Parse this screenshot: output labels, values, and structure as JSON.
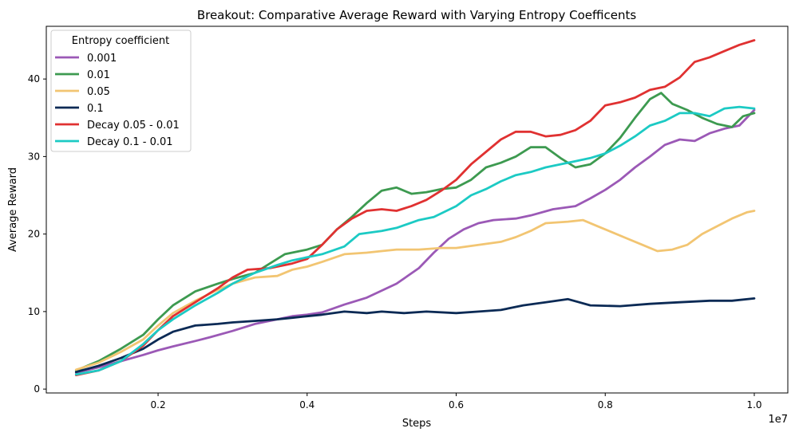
{
  "chart_data": {
    "type": "line",
    "title": "Breakout: Comparative Average Reward with Varying Entropy Coefficents",
    "xlabel": "Steps",
    "ylabel": "Average Reward",
    "x_scale_label": "1e7",
    "xlim": [
      0.05,
      1.045
    ],
    "ylim": [
      -0.5,
      46.8
    ],
    "xticks": [
      0.2,
      0.4,
      0.6,
      0.8,
      1.0
    ],
    "xtick_labels": [
      "0.2",
      "0.4",
      "0.6",
      "0.8",
      "1.0"
    ],
    "yticks": [
      0,
      10,
      20,
      30,
      40
    ],
    "ytick_labels": [
      "0",
      "10",
      "20",
      "30",
      "40"
    ],
    "grid": false,
    "legend_title": "Entropy coefficient",
    "legend_position": "top-left",
    "series": [
      {
        "name": "0.001",
        "color": "#9b59b6",
        "points": [
          [
            0.09,
            2.1
          ],
          [
            0.12,
            2.8
          ],
          [
            0.15,
            3.6
          ],
          [
            0.18,
            4.4
          ],
          [
            0.2,
            5.0
          ],
          [
            0.22,
            5.5
          ],
          [
            0.25,
            6.2
          ],
          [
            0.27,
            6.7
          ],
          [
            0.3,
            7.5
          ],
          [
            0.33,
            8.4
          ],
          [
            0.36,
            9.0
          ],
          [
            0.38,
            9.4
          ],
          [
            0.4,
            9.6
          ],
          [
            0.42,
            9.9
          ],
          [
            0.45,
            10.9
          ],
          [
            0.48,
            11.8
          ],
          [
            0.5,
            12.7
          ],
          [
            0.52,
            13.6
          ],
          [
            0.55,
            15.6
          ],
          [
            0.57,
            17.6
          ],
          [
            0.59,
            19.4
          ],
          [
            0.61,
            20.6
          ],
          [
            0.63,
            21.4
          ],
          [
            0.65,
            21.8
          ],
          [
            0.68,
            22.0
          ],
          [
            0.7,
            22.4
          ],
          [
            0.73,
            23.2
          ],
          [
            0.76,
            23.6
          ],
          [
            0.78,
            24.6
          ],
          [
            0.8,
            25.7
          ],
          [
            0.82,
            27.0
          ],
          [
            0.84,
            28.6
          ],
          [
            0.86,
            30.0
          ],
          [
            0.88,
            31.5
          ],
          [
            0.9,
            32.2
          ],
          [
            0.92,
            32.0
          ],
          [
            0.94,
            33.0
          ],
          [
            0.96,
            33.6
          ],
          [
            0.98,
            34.0
          ],
          [
            1.0,
            36.0
          ]
        ]
      },
      {
        "name": "0.01",
        "color": "#3d9a50",
        "points": [
          [
            0.09,
            2.4
          ],
          [
            0.12,
            3.6
          ],
          [
            0.15,
            5.2
          ],
          [
            0.18,
            7.0
          ],
          [
            0.2,
            9.0
          ],
          [
            0.22,
            10.8
          ],
          [
            0.25,
            12.6
          ],
          [
            0.28,
            13.6
          ],
          [
            0.3,
            14.2
          ],
          [
            0.33,
            15.0
          ],
          [
            0.35,
            16.2
          ],
          [
            0.37,
            17.4
          ],
          [
            0.4,
            18.0
          ],
          [
            0.42,
            18.6
          ],
          [
            0.44,
            20.6
          ],
          [
            0.46,
            22.2
          ],
          [
            0.48,
            24.0
          ],
          [
            0.5,
            25.6
          ],
          [
            0.52,
            26.0
          ],
          [
            0.54,
            25.2
          ],
          [
            0.56,
            25.4
          ],
          [
            0.58,
            25.8
          ],
          [
            0.6,
            26.0
          ],
          [
            0.62,
            27.0
          ],
          [
            0.64,
            28.6
          ],
          [
            0.66,
            29.2
          ],
          [
            0.68,
            30.0
          ],
          [
            0.7,
            31.2
          ],
          [
            0.72,
            31.2
          ],
          [
            0.74,
            29.8
          ],
          [
            0.76,
            28.6
          ],
          [
            0.78,
            29.0
          ],
          [
            0.8,
            30.4
          ],
          [
            0.82,
            32.4
          ],
          [
            0.84,
            35.0
          ],
          [
            0.86,
            37.4
          ],
          [
            0.875,
            38.2
          ],
          [
            0.89,
            36.8
          ],
          [
            0.91,
            36.0
          ],
          [
            0.93,
            35.0
          ],
          [
            0.95,
            34.2
          ],
          [
            0.97,
            33.8
          ],
          [
            0.985,
            35.2
          ],
          [
            1.0,
            35.6
          ]
        ]
      },
      {
        "name": "0.05",
        "color": "#f2c572",
        "points": [
          [
            0.09,
            2.5
          ],
          [
            0.12,
            3.4
          ],
          [
            0.15,
            4.8
          ],
          [
            0.18,
            6.4
          ],
          [
            0.2,
            8.2
          ],
          [
            0.22,
            9.8
          ],
          [
            0.25,
            11.4
          ],
          [
            0.28,
            12.8
          ],
          [
            0.3,
            13.6
          ],
          [
            0.33,
            14.4
          ],
          [
            0.36,
            14.6
          ],
          [
            0.38,
            15.4
          ],
          [
            0.4,
            15.8
          ],
          [
            0.42,
            16.4
          ],
          [
            0.45,
            17.4
          ],
          [
            0.48,
            17.6
          ],
          [
            0.5,
            17.8
          ],
          [
            0.52,
            18.0
          ],
          [
            0.55,
            18.0
          ],
          [
            0.58,
            18.2
          ],
          [
            0.6,
            18.2
          ],
          [
            0.63,
            18.6
          ],
          [
            0.66,
            19.0
          ],
          [
            0.68,
            19.6
          ],
          [
            0.7,
            20.4
          ],
          [
            0.72,
            21.4
          ],
          [
            0.75,
            21.6
          ],
          [
            0.77,
            21.8
          ],
          [
            0.79,
            21.0
          ],
          [
            0.81,
            20.2
          ],
          [
            0.83,
            19.4
          ],
          [
            0.85,
            18.6
          ],
          [
            0.87,
            17.8
          ],
          [
            0.89,
            18.0
          ],
          [
            0.91,
            18.6
          ],
          [
            0.93,
            20.0
          ],
          [
            0.95,
            21.0
          ],
          [
            0.97,
            22.0
          ],
          [
            0.99,
            22.8
          ],
          [
            1.0,
            23.0
          ]
        ]
      },
      {
        "name": "0.1",
        "color": "#0b2a55",
        "points": [
          [
            0.09,
            2.2
          ],
          [
            0.12,
            3.0
          ],
          [
            0.15,
            4.0
          ],
          [
            0.18,
            5.2
          ],
          [
            0.2,
            6.4
          ],
          [
            0.22,
            7.4
          ],
          [
            0.25,
            8.2
          ],
          [
            0.28,
            8.4
          ],
          [
            0.3,
            8.6
          ],
          [
            0.33,
            8.8
          ],
          [
            0.36,
            9.0
          ],
          [
            0.38,
            9.2
          ],
          [
            0.4,
            9.4
          ],
          [
            0.42,
            9.6
          ],
          [
            0.45,
            10.0
          ],
          [
            0.48,
            9.8
          ],
          [
            0.5,
            10.0
          ],
          [
            0.53,
            9.8
          ],
          [
            0.56,
            10.0
          ],
          [
            0.6,
            9.8
          ],
          [
            0.63,
            10.0
          ],
          [
            0.66,
            10.2
          ],
          [
            0.69,
            10.8
          ],
          [
            0.72,
            11.2
          ],
          [
            0.75,
            11.6
          ],
          [
            0.78,
            10.8
          ],
          [
            0.82,
            10.7
          ],
          [
            0.86,
            11.0
          ],
          [
            0.9,
            11.2
          ],
          [
            0.94,
            11.4
          ],
          [
            0.97,
            11.4
          ],
          [
            1.0,
            11.7
          ]
        ]
      },
      {
        "name": "Decay 0.05 - 0.01",
        "color": "#e03131",
        "points": [
          [
            0.09,
            1.8
          ],
          [
            0.12,
            2.4
          ],
          [
            0.15,
            3.6
          ],
          [
            0.18,
            5.6
          ],
          [
            0.2,
            7.6
          ],
          [
            0.22,
            9.4
          ],
          [
            0.25,
            11.2
          ],
          [
            0.28,
            13.0
          ],
          [
            0.3,
            14.4
          ],
          [
            0.32,
            15.4
          ],
          [
            0.35,
            15.6
          ],
          [
            0.38,
            16.2
          ],
          [
            0.4,
            16.8
          ],
          [
            0.42,
            18.6
          ],
          [
            0.44,
            20.6
          ],
          [
            0.46,
            22.0
          ],
          [
            0.48,
            23.0
          ],
          [
            0.5,
            23.2
          ],
          [
            0.52,
            23.0
          ],
          [
            0.54,
            23.6
          ],
          [
            0.56,
            24.4
          ],
          [
            0.58,
            25.6
          ],
          [
            0.6,
            27.0
          ],
          [
            0.62,
            29.0
          ],
          [
            0.64,
            30.6
          ],
          [
            0.66,
            32.2
          ],
          [
            0.68,
            33.2
          ],
          [
            0.7,
            33.2
          ],
          [
            0.72,
            32.6
          ],
          [
            0.74,
            32.8
          ],
          [
            0.76,
            33.4
          ],
          [
            0.78,
            34.6
          ],
          [
            0.8,
            36.6
          ],
          [
            0.82,
            37.0
          ],
          [
            0.84,
            37.6
          ],
          [
            0.86,
            38.6
          ],
          [
            0.88,
            39.0
          ],
          [
            0.9,
            40.2
          ],
          [
            0.92,
            42.2
          ],
          [
            0.94,
            42.8
          ],
          [
            0.96,
            43.6
          ],
          [
            0.98,
            44.4
          ],
          [
            1.0,
            45.0
          ]
        ]
      },
      {
        "name": "Decay 0.1 - 0.01",
        "color": "#1ccac4",
        "points": [
          [
            0.09,
            1.9
          ],
          [
            0.12,
            2.4
          ],
          [
            0.15,
            3.6
          ],
          [
            0.18,
            5.8
          ],
          [
            0.2,
            7.6
          ],
          [
            0.22,
            9.0
          ],
          [
            0.25,
            10.8
          ],
          [
            0.28,
            12.4
          ],
          [
            0.3,
            13.6
          ],
          [
            0.33,
            15.0
          ],
          [
            0.36,
            16.0
          ],
          [
            0.38,
            16.6
          ],
          [
            0.4,
            17.0
          ],
          [
            0.42,
            17.4
          ],
          [
            0.45,
            18.4
          ],
          [
            0.47,
            20.0
          ],
          [
            0.5,
            20.4
          ],
          [
            0.52,
            20.8
          ],
          [
            0.55,
            21.8
          ],
          [
            0.57,
            22.2
          ],
          [
            0.6,
            23.6
          ],
          [
            0.62,
            25.0
          ],
          [
            0.64,
            25.8
          ],
          [
            0.66,
            26.8
          ],
          [
            0.68,
            27.6
          ],
          [
            0.7,
            28.0
          ],
          [
            0.72,
            28.6
          ],
          [
            0.74,
            29.0
          ],
          [
            0.76,
            29.4
          ],
          [
            0.78,
            29.8
          ],
          [
            0.8,
            30.4
          ],
          [
            0.82,
            31.4
          ],
          [
            0.84,
            32.6
          ],
          [
            0.86,
            34.0
          ],
          [
            0.88,
            34.6
          ],
          [
            0.9,
            35.6
          ],
          [
            0.92,
            35.6
          ],
          [
            0.94,
            35.2
          ],
          [
            0.96,
            36.2
          ],
          [
            0.98,
            36.4
          ],
          [
            1.0,
            36.2
          ]
        ]
      }
    ]
  }
}
